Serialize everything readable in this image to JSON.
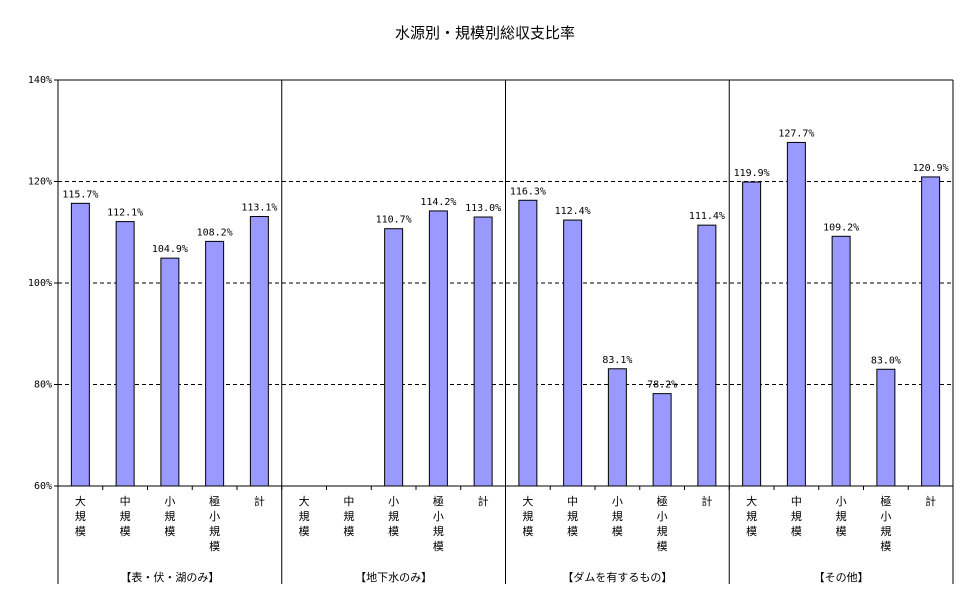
{
  "chart_data": {
    "type": "bar",
    "title": "水源別・規模別総収支比率",
    "ylim": [
      60,
      140
    ],
    "yticks": [
      "60%",
      "80%",
      "100%",
      "120%",
      "140%"
    ],
    "ytick_values": [
      60,
      80,
      100,
      120,
      140
    ],
    "grid": "dashed horizontal",
    "bar_color": "#9999ff",
    "groups": [
      {
        "name": "【表・伏・湖のみ】",
        "categories": [
          "大規模",
          "中規模",
          "小規模",
          "極小規模",
          "計"
        ],
        "values": [
          115.7,
          112.1,
          104.9,
          108.2,
          113.1
        ],
        "labels": [
          "115.7%",
          "112.1%",
          "104.9%",
          "108.2%",
          "113.1%"
        ]
      },
      {
        "name": "【地下水のみ】",
        "categories": [
          "大規模",
          "中規模",
          "小規模",
          "極小規模",
          "計"
        ],
        "values": [
          null,
          null,
          110.7,
          114.2,
          113.0
        ],
        "labels": [
          "",
          "",
          "110.7%",
          "114.2%",
          "113.0%"
        ]
      },
      {
        "name": "【ダムを有するもの】",
        "categories": [
          "大規模",
          "中規模",
          "小規模",
          "極小規模",
          "計"
        ],
        "values": [
          116.3,
          112.4,
          83.1,
          78.2,
          111.4
        ],
        "labels": [
          "116.3%",
          "112.4%",
          "83.1%",
          "78.2%",
          "111.4%"
        ]
      },
      {
        "name": "【その他】",
        "categories": [
          "大規模",
          "中規模",
          "小規模",
          "極小規模",
          "計"
        ],
        "values": [
          119.9,
          127.7,
          109.2,
          83.0,
          120.9
        ],
        "labels": [
          "119.9%",
          "127.7%",
          "109.2%",
          "83.0%",
          "120.9%"
        ]
      }
    ]
  }
}
